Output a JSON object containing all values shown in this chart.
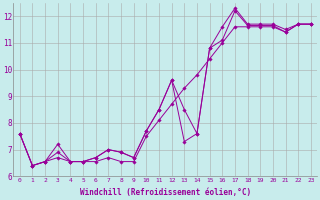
{
  "xlabel": "Windchill (Refroidissement éolien,°C)",
  "bg_color": "#c8ecec",
  "line_color": "#990099",
  "grid_color": "#aaaaaa",
  "xlim": [
    -0.5,
    23.5
  ],
  "ylim": [
    6.0,
    12.5
  ],
  "yticks": [
    6,
    7,
    8,
    9,
    10,
    11,
    12
  ],
  "xticks": [
    0,
    1,
    2,
    3,
    4,
    5,
    6,
    7,
    8,
    9,
    10,
    11,
    12,
    13,
    14,
    15,
    16,
    17,
    18,
    19,
    20,
    21,
    22,
    23
  ],
  "series": [
    [
      7.6,
      6.4,
      6.55,
      6.7,
      6.55,
      6.55,
      6.55,
      6.7,
      6.55,
      6.55,
      7.5,
      8.1,
      8.7,
      9.3,
      9.8,
      10.4,
      11.0,
      11.6,
      11.6,
      11.6,
      11.6,
      11.4,
      11.7,
      11.7
    ],
    [
      7.6,
      6.4,
      6.55,
      6.9,
      6.55,
      6.55,
      6.7,
      7.0,
      6.9,
      6.7,
      7.7,
      8.5,
      9.6,
      7.3,
      7.6,
      10.8,
      11.1,
      12.2,
      11.65,
      11.65,
      11.65,
      11.4,
      11.7,
      11.7
    ],
    [
      7.6,
      6.4,
      6.55,
      7.2,
      6.55,
      6.55,
      6.7,
      7.0,
      6.9,
      6.7,
      7.7,
      8.5,
      9.6,
      8.5,
      7.6,
      10.8,
      11.6,
      12.3,
      11.7,
      11.7,
      11.7,
      11.5,
      11.7,
      11.7
    ]
  ]
}
